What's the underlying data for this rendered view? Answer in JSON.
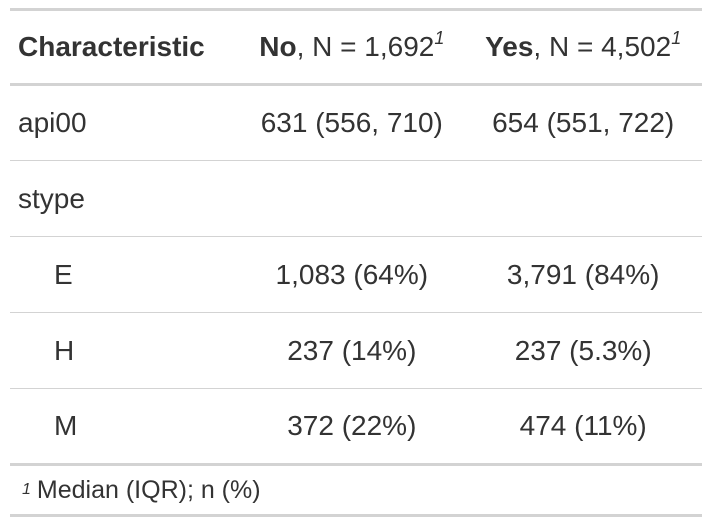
{
  "header": {
    "characteristic": "Characteristic",
    "groups": [
      {
        "name": "No",
        "n_text": ", N = 1,692",
        "footnote_mark": "1"
      },
      {
        "name": "Yes",
        "n_text": ", N = 4,502",
        "footnote_mark": "1"
      }
    ]
  },
  "rows": [
    {
      "label": "api00",
      "values": [
        "631 (556, 710)",
        "654 (551, 722)"
      ]
    },
    {
      "label": "stype",
      "values": [
        "",
        ""
      ]
    },
    {
      "label": "E",
      "values": [
        "1,083 (64%)",
        "3,791 (84%)"
      ]
    },
    {
      "label": "H",
      "values": [
        "237 (14%)",
        "237 (5.3%)"
      ]
    },
    {
      "label": "M",
      "values": [
        "372 (22%)",
        "474 (11%)"
      ]
    }
  ],
  "footnote": {
    "mark": "1",
    "text": "Median (IQR); n (%)"
  }
}
